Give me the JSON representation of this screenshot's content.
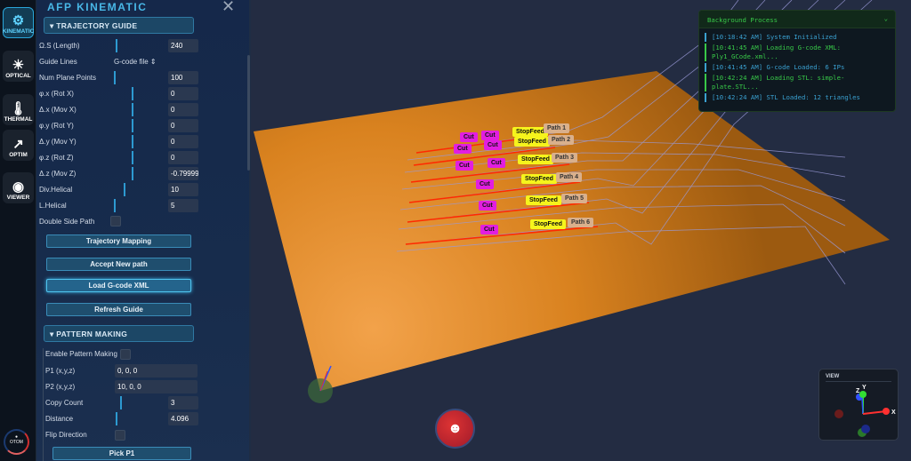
{
  "rail": {
    "items": [
      {
        "label": "KINEMATIC",
        "icon": "robot-arm-icon",
        "active": true
      },
      {
        "label": "OPTICAL",
        "icon": "sun-icon"
      },
      {
        "label": "THERMAL",
        "icon": "thermometer-icon"
      },
      {
        "label": "OPTIM",
        "icon": "trend-up-icon"
      },
      {
        "label": "VIEWER",
        "icon": "eye-icon"
      }
    ],
    "logo": "OTOM"
  },
  "panel": {
    "title": "AFP KINEMATIC",
    "trajectory": {
      "title": "TRAJECTORY GUIDE",
      "fields": [
        {
          "label": "Ω.S (Length)",
          "value": "240",
          "slider": 0.1
        },
        {
          "label": "Guide Lines",
          "select": "G-code file"
        },
        {
          "label": "Num Plane Points",
          "value": "100",
          "slider": 0.05
        },
        {
          "label": "φ.x (Rot X)",
          "value": "0",
          "slider": 0.5
        },
        {
          "label": "Δ.x (Mov X)",
          "value": "0",
          "slider": 0.5
        },
        {
          "label": "φ.y (Rot Y)",
          "value": "0",
          "slider": 0.5
        },
        {
          "label": "Δ.y (Mov Y)",
          "value": "0",
          "slider": 0.5
        },
        {
          "label": "φ.z (Rot Z)",
          "value": "0",
          "slider": 0.5
        },
        {
          "label": "Δ.z (Mov Z)",
          "value": "-0.79999",
          "slider": 0.5
        },
        {
          "label": "Div.Helical",
          "value": "10",
          "slider": 0.3
        },
        {
          "label": "L.Helical",
          "value": "5",
          "slider": 0.05
        }
      ],
      "double_side": "Double Side Path",
      "buttons": [
        "Trajectory Mapping",
        "Accept New path",
        "Load G-code XML",
        "Refresh Guide"
      ]
    },
    "pattern": {
      "title": "PATTERN MAKING",
      "enable": "Enable Pattern Making",
      "p1_label": "P1 (x,y,z)",
      "p1": "0, 0, 0",
      "p2_label": "P2 (x,y,z)",
      "p2": "10, 0, 0",
      "copy_label": "Copy Count",
      "copy": "3",
      "dist_label": "Distance",
      "dist": "4.096",
      "flip": "Flip Direction",
      "pick": "Pick P1"
    }
  },
  "log": {
    "title": "Background Process",
    "entries": [
      {
        "text": "[10:18:42 AM] System Initialized",
        "color": "#3aa0d0"
      },
      {
        "text": "[10:41:45 AM] Loading G-code XML: Ply1_GCode.xml...",
        "color": "#38c848"
      },
      {
        "text": "[10:41:45 AM] G-code Loaded: 6 IPs",
        "color": "#3aa0d0"
      },
      {
        "text": "[10:42:24 AM] Loading STL: simple-plate.STL...",
        "color": "#38c848"
      },
      {
        "text": "[10:42:24 AM] STL Loaded: 12 triangles",
        "color": "#3aa0d0"
      }
    ]
  },
  "scene": {
    "cut": "Cut",
    "stopfeed": "StopFeed",
    "paths": [
      "Path 1",
      "Path 2",
      "Path 3",
      "Path 4",
      "Path 5",
      "Path 6"
    ]
  },
  "view": {
    "title": "VIEW",
    "x": "X",
    "y": "Y",
    "z": "Z"
  }
}
